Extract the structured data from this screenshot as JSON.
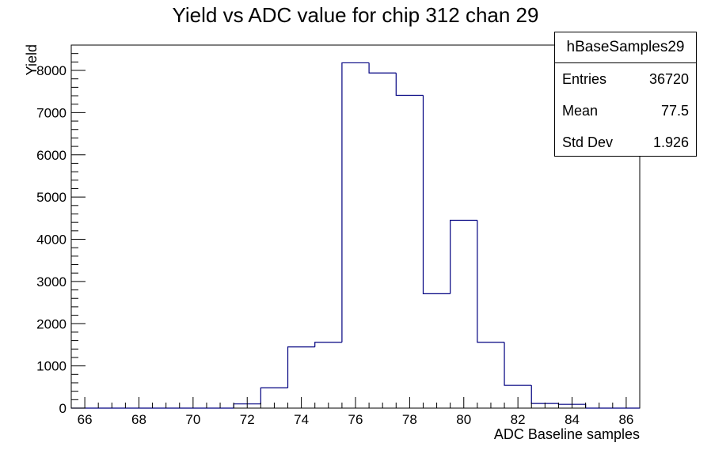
{
  "chart_data": {
    "type": "histogram",
    "title": "Yield vs ADC value for chip 312 chan 29",
    "xlabel": "ADC Baseline samples",
    "ylabel": "Yield",
    "xlim": [
      65.5,
      86.5
    ],
    "ylim": [
      0,
      8600
    ],
    "x_ticks": [
      "66",
      "68",
      "70",
      "72",
      "74",
      "76",
      "78",
      "80",
      "82",
      "84",
      "86"
    ],
    "y_ticks": [
      "0",
      "1000",
      "2000",
      "3000",
      "4000",
      "5000",
      "6000",
      "7000",
      "8000"
    ],
    "bin_width": 1,
    "bins": [
      {
        "low": 71.5,
        "high": 72.5,
        "value": 100
      },
      {
        "low": 72.5,
        "high": 73.5,
        "value": 480
      },
      {
        "low": 73.5,
        "high": 74.5,
        "value": 1450
      },
      {
        "low": 74.5,
        "high": 75.5,
        "value": 1560
      },
      {
        "low": 75.5,
        "high": 76.5,
        "value": 8180
      },
      {
        "low": 76.5,
        "high": 77.5,
        "value": 7940
      },
      {
        "low": 77.5,
        "high": 78.5,
        "value": 7410
      },
      {
        "low": 78.5,
        "high": 79.5,
        "value": 2710
      },
      {
        "low": 79.5,
        "high": 80.5,
        "value": 4450
      },
      {
        "low": 80.5,
        "high": 81.5,
        "value": 1560
      },
      {
        "low": 81.5,
        "high": 82.5,
        "value": 540
      },
      {
        "low": 82.5,
        "high": 83.5,
        "value": 110
      },
      {
        "low": 83.5,
        "high": 84.5,
        "value": 90
      }
    ],
    "line_color": "#000080",
    "grid": false
  },
  "stats": {
    "name": "hBaseSamples29",
    "rows": [
      {
        "label": "Entries",
        "value": "36720"
      },
      {
        "label": "Mean",
        "value": "77.5"
      },
      {
        "label": "Std Dev",
        "value": "1.926"
      }
    ]
  }
}
